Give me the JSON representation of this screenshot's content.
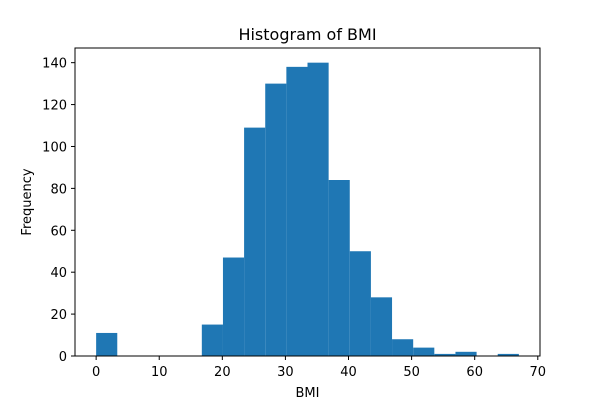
{
  "chart_data": {
    "type": "bar",
    "title": "Histogram of BMI",
    "xlabel": "BMI",
    "ylabel": "Frequency",
    "xlim": [
      -3.35,
      70.35
    ],
    "ylim": [
      0,
      147
    ],
    "x_ticks": [
      0,
      10,
      20,
      30,
      40,
      50,
      60,
      70
    ],
    "y_ticks": [
      0,
      20,
      40,
      60,
      80,
      100,
      120,
      140
    ],
    "bin_edges": [
      0.0,
      3.35,
      6.7,
      10.05,
      13.4,
      16.75,
      20.1,
      23.45,
      26.8,
      30.15,
      33.5,
      36.85,
      40.2,
      43.55,
      46.9,
      50.25,
      53.6,
      56.95,
      60.3,
      63.65,
      67.0
    ],
    "values": [
      11,
      0,
      0,
      0,
      0,
      15,
      47,
      109,
      130,
      138,
      140,
      84,
      50,
      28,
      8,
      4,
      1,
      2,
      0,
      1
    ],
    "bar_color": "#1f77b4",
    "grid": false
  }
}
